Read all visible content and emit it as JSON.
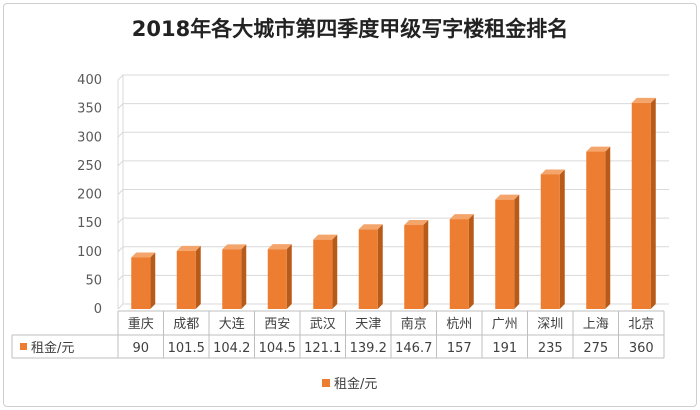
{
  "chart_data": {
    "type": "bar",
    "title": "2018年各大城市第四季度甲级写字楼租金排名",
    "categories": [
      "重庆",
      "成都",
      "大连",
      "西安",
      "武汉",
      "天津",
      "南京",
      "杭州",
      "广州",
      "深圳",
      "上海",
      "北京"
    ],
    "series": [
      {
        "name": "租金/元",
        "values": [
          90,
          101.5,
          104.2,
          104.5,
          121.1,
          139.2,
          146.7,
          157,
          191,
          235,
          275,
          360
        ],
        "value_labels": [
          "90",
          "101.5",
          "104.2",
          "104.5",
          "121.1",
          "139.2",
          "146.7",
          "157",
          "191",
          "235",
          "275",
          "360"
        ]
      }
    ],
    "ylim": [
      0,
      400
    ],
    "yticks": [
      "0",
      "50",
      "100",
      "150",
      "200",
      "250",
      "300",
      "350",
      "400"
    ],
    "grid": true,
    "data_table": true,
    "legend_position": "bottom",
    "bar_style": "3d-column",
    "colors": {
      "bar_front": "#ED7D31",
      "bar_side": "#B85A18",
      "bar_top": "#F4A56B",
      "grid": "#D9D9D9",
      "table_border": "#BFBFBF"
    }
  }
}
